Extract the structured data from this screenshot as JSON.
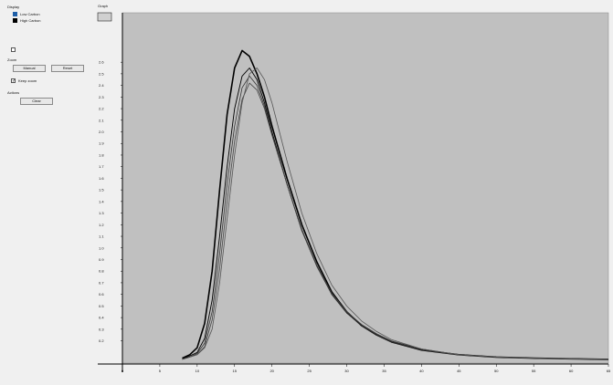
{
  "display": {
    "title": "Display",
    "legend": [
      {
        "label": "Low Carbon",
        "color": "#1f5fa8"
      },
      {
        "label": "High Carbon",
        "color": "#000000"
      }
    ]
  },
  "zoom": {
    "title": "Zoom",
    "buttons": [
      "Manual",
      "Reset"
    ],
    "keep_zoom_label": "Keep zoom",
    "keep_zoom_checked": true
  },
  "actions": {
    "title": "Actions",
    "button": "Clear"
  },
  "graph": {
    "title": "Graph"
  },
  "chart_data": {
    "type": "line",
    "title": "",
    "xlabel": "",
    "ylabel": "",
    "xlim": [
      0,
      65
    ],
    "ylim": [
      0,
      2.9
    ],
    "grid": false,
    "y_ticks": [
      0.2,
      0.3,
      0.4,
      0.5,
      0.6,
      0.7,
      0.8,
      0.9,
      1.0,
      1.1,
      1.2,
      1.3,
      1.4,
      1.5,
      1.6,
      1.7,
      1.8,
      1.9,
      2.0,
      2.1,
      2.2,
      2.3,
      2.4,
      2.5,
      2.6
    ],
    "x_ticks": [
      0,
      5,
      10,
      15,
      20,
      25,
      30,
      35,
      40,
      45,
      50,
      55,
      60,
      65
    ],
    "series": [
      {
        "color": "#000000",
        "width": 1.6,
        "x": [
          8,
          9,
          10,
          11,
          12,
          13,
          14,
          15,
          16,
          17,
          18,
          19,
          20,
          22,
          24,
          26,
          28,
          30,
          32,
          34,
          36,
          40,
          45,
          50,
          55,
          60,
          65
        ],
        "y": [
          0.05,
          0.08,
          0.14,
          0.35,
          0.8,
          1.5,
          2.15,
          2.55,
          2.7,
          2.65,
          2.5,
          2.3,
          2.05,
          1.6,
          1.2,
          0.88,
          0.62,
          0.45,
          0.33,
          0.25,
          0.19,
          0.12,
          0.08,
          0.06,
          0.05,
          0.045,
          0.04
        ]
      },
      {
        "color": "#000000",
        "width": 0.9,
        "x": [
          8,
          9,
          10,
          11,
          12,
          13,
          14,
          15,
          16,
          17,
          18,
          19,
          20,
          22,
          24,
          26,
          28,
          30,
          32,
          34,
          36,
          40,
          45,
          50,
          55,
          60,
          65
        ],
        "y": [
          0.04,
          0.07,
          0.1,
          0.22,
          0.55,
          1.1,
          1.7,
          2.2,
          2.48,
          2.55,
          2.45,
          2.25,
          2.0,
          1.55,
          1.15,
          0.85,
          0.6,
          0.44,
          0.33,
          0.25,
          0.19,
          0.12,
          0.08,
          0.06,
          0.05,
          0.045,
          0.04
        ]
      },
      {
        "color": "#333333",
        "width": 0.8,
        "x": [
          8,
          9,
          10,
          11,
          12,
          13,
          14,
          15,
          16,
          17,
          18,
          19,
          20,
          22,
          24,
          26,
          28,
          30,
          32,
          34,
          36,
          40,
          45,
          50,
          55,
          60,
          65
        ],
        "y": [
          0.04,
          0.06,
          0.09,
          0.18,
          0.45,
          0.95,
          1.55,
          2.05,
          2.38,
          2.48,
          2.4,
          2.22,
          1.98,
          1.55,
          1.15,
          0.84,
          0.6,
          0.44,
          0.33,
          0.25,
          0.19,
          0.12,
          0.08,
          0.06,
          0.05,
          0.045,
          0.04
        ]
      },
      {
        "color": "#444444",
        "width": 0.8,
        "x": [
          8,
          9,
          10,
          11,
          12,
          13,
          14,
          15,
          16,
          17,
          18,
          19,
          20,
          22,
          24,
          26,
          28,
          30,
          32,
          34,
          36,
          40,
          45,
          50,
          55,
          60,
          65
        ],
        "y": [
          0.04,
          0.06,
          0.08,
          0.15,
          0.38,
          0.82,
          1.4,
          1.92,
          2.28,
          2.42,
          2.36,
          2.2,
          1.97,
          1.55,
          1.16,
          0.85,
          0.61,
          0.45,
          0.34,
          0.26,
          0.2,
          0.13,
          0.08,
          0.06,
          0.05,
          0.045,
          0.04
        ]
      },
      {
        "color": "#555555",
        "width": 0.8,
        "x": [
          8,
          9,
          10,
          11,
          12,
          13,
          14,
          15,
          16,
          17,
          18,
          19,
          20,
          22,
          24,
          26,
          28,
          30,
          32,
          34,
          36,
          40,
          45,
          50,
          55,
          60,
          65
        ],
        "y": [
          0.04,
          0.06,
          0.08,
          0.14,
          0.3,
          0.7,
          1.25,
          1.8,
          2.25,
          2.5,
          2.55,
          2.45,
          2.25,
          1.75,
          1.3,
          0.95,
          0.68,
          0.5,
          0.37,
          0.28,
          0.21,
          0.13,
          0.08,
          0.06,
          0.05,
          0.045,
          0.04
        ]
      }
    ]
  }
}
